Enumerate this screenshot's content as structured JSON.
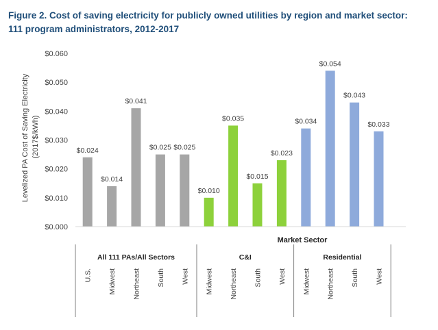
{
  "title_line1": "Figure 2. Cost of saving electricity for publicly owned utilities by region and market sector:",
  "title_line2": "111 program administrators, 2012-2017",
  "chart_data": {
    "type": "bar",
    "ylabel_line1": "Levelized PA Cost of Saving Electricity",
    "ylabel_line2": "(2017$/kWh)",
    "xlabel": "Market Sector",
    "ylim": [
      0,
      0.06
    ],
    "yticks": [
      "$0.000",
      "$0.010",
      "$0.020",
      "$0.030",
      "$0.040",
      "$0.050",
      "$0.060"
    ],
    "grid": false,
    "groups": [
      {
        "name": "All 111 PAs/All Sectors",
        "color": "#a6a6a6",
        "categories": [
          "U.S.",
          "Midwest",
          "Northeast",
          "South",
          "West"
        ],
        "values": [
          0.024,
          0.014,
          0.041,
          0.025,
          0.025
        ],
        "labels": [
          "$0.024",
          "$0.014",
          "$0.041",
          "$0.025",
          "$0.025"
        ]
      },
      {
        "name": "C&I",
        "color": "#8dd13b",
        "categories": [
          "Midwest",
          "Northeast",
          "South",
          "West"
        ],
        "values": [
          0.01,
          0.035,
          0.015,
          0.023
        ],
        "labels": [
          "$0.010",
          "$0.035",
          "$0.015",
          "$0.023"
        ]
      },
      {
        "name": "Residential",
        "color": "#8eaadb",
        "categories": [
          "Midwest",
          "Northeast",
          "South",
          "West"
        ],
        "values": [
          0.034,
          0.054,
          0.043,
          0.033
        ],
        "labels": [
          "$0.034",
          "$0.054",
          "$0.043",
          "$0.033"
        ]
      }
    ]
  }
}
